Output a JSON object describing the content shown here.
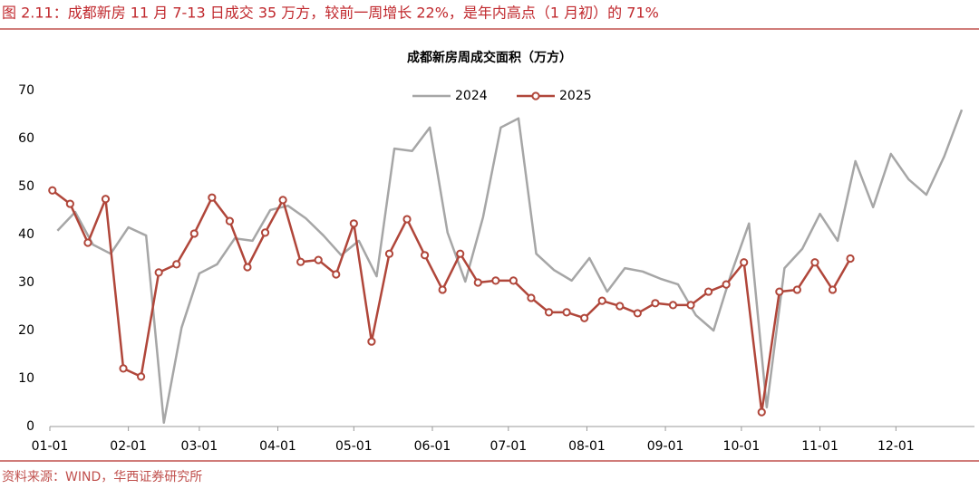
{
  "header": {
    "title": "图 2.11：成都新房 11 月 7-13 日成交 35 万方，较前一周增长 22%，是年内高点（1 月初）的 71%"
  },
  "source": "资料来源：WIND，华西证券研究所",
  "chart_data": {
    "type": "line",
    "title": "成都新房周成交面积（万方）",
    "xlim": [
      0,
      365
    ],
    "xticks": [
      {
        "value": 0,
        "label": "01-01"
      },
      {
        "value": 31,
        "label": "02-01"
      },
      {
        "value": 59,
        "label": "03-01"
      },
      {
        "value": 90,
        "label": "04-01"
      },
      {
        "value": 120,
        "label": "05-01"
      },
      {
        "value": 151,
        "label": "06-01"
      },
      {
        "value": 181,
        "label": "07-01"
      },
      {
        "value": 212,
        "label": "08-01"
      },
      {
        "value": 243,
        "label": "09-01"
      },
      {
        "value": 273,
        "label": "10-01"
      },
      {
        "value": 304,
        "label": "11-01"
      },
      {
        "value": 334,
        "label": "12-01"
      }
    ],
    "ylim": [
      0,
      70
    ],
    "yticks": [
      0,
      10,
      20,
      30,
      40,
      50,
      60,
      70
    ],
    "grid": false,
    "legend": "top",
    "series": [
      {
        "name": "2024",
        "color": "#a6a6a6",
        "marker": false,
        "x": [
          3,
          10,
          17,
          24,
          31,
          38,
          45,
          52,
          59,
          66,
          73,
          80,
          87,
          94,
          101,
          108,
          115,
          122,
          129,
          136,
          143,
          150,
          157,
          164,
          171,
          178,
          185,
          192,
          199,
          206,
          213,
          220,
          227,
          234,
          241,
          248,
          255,
          262,
          269,
          276,
          283,
          290,
          297,
          304,
          311,
          318,
          325,
          332,
          339,
          346,
          353,
          360
        ],
        "values": [
          40.8,
          44.7,
          37.9,
          36.0,
          41.5,
          39.8,
          0.8,
          20.6,
          31.9,
          33.8,
          39.2,
          38.7,
          45.1,
          46.0,
          43.4,
          39.8,
          35.7,
          38.7,
          31.3,
          57.9,
          57.4,
          62.3,
          40.4,
          30.2,
          43.6,
          62.3,
          64.2,
          36.0,
          32.6,
          30.4,
          35.1,
          28.1,
          33.0,
          32.3,
          30.8,
          29.6,
          23.2,
          20.0,
          31.9,
          42.3,
          4.0,
          33.0,
          37.0,
          44.3,
          38.7,
          55.3,
          45.7,
          56.8,
          51.5,
          48.3,
          56.2,
          66.0
        ]
      },
      {
        "name": "2025",
        "color": "#b0463a",
        "marker": true,
        "x": [
          1,
          8,
          15,
          22,
          29,
          36,
          43,
          50,
          57,
          64,
          71,
          78,
          85,
          92,
          99,
          106,
          113,
          120,
          127,
          134,
          141,
          148,
          155,
          162,
          169,
          176,
          183,
          190,
          197,
          204,
          211,
          218,
          225,
          232,
          239,
          246,
          253,
          260,
          267,
          274,
          281,
          288,
          295,
          302,
          309,
          316
        ],
        "values": [
          49.2,
          46.4,
          38.3,
          47.4,
          12.1,
          10.4,
          32.1,
          33.8,
          40.2,
          47.7,
          42.8,
          33.2,
          40.4,
          47.2,
          34.3,
          34.7,
          31.7,
          42.3,
          17.7,
          36.0,
          43.2,
          35.7,
          28.5,
          36.0,
          30.0,
          30.4,
          30.4,
          26.8,
          23.8,
          23.8,
          22.6,
          26.2,
          25.1,
          23.6,
          25.7,
          25.3,
          25.3,
          28.1,
          29.6,
          34.2,
          3.0,
          28.1,
          28.5,
          34.2,
          28.5,
          35
        ]
      }
    ]
  }
}
